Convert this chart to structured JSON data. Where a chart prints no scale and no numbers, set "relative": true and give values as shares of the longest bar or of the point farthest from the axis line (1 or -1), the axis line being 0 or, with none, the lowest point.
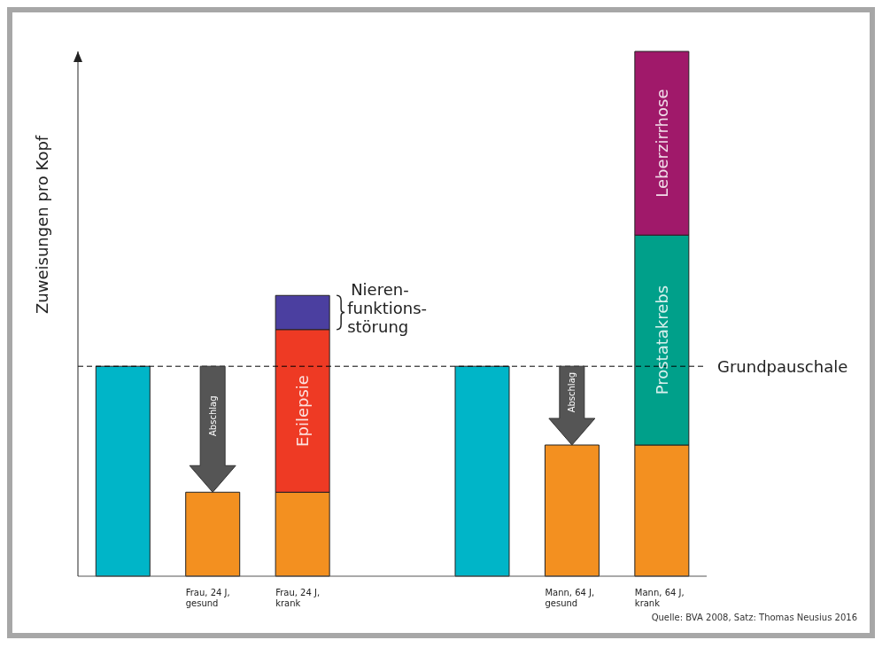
{
  "chart_data": {
    "type": "bar",
    "stacked": true,
    "relative": true,
    "ylabel": "Zuweisungen pro Kopf",
    "categories": [
      null,
      "Frau, 24 J, gesund",
      "Frau, 24 J, krank",
      null,
      null,
      "Mann, 64 J, gesund",
      "Mann, 64 J, krank"
    ],
    "series": [
      {
        "color": "#00b5c8",
        "values": [
          0.4,
          null,
          null,
          null,
          0.4,
          null,
          null
        ]
      },
      {
        "color": "#f39020",
        "values": [
          null,
          0.16,
          0.16,
          null,
          null,
          0.25,
          0.25
        ]
      },
      {
        "name": "Epilepsie",
        "color": "#ee3a24",
        "values": [
          null,
          null,
          0.31,
          null,
          null,
          null,
          null
        ]
      },
      {
        "name": "Nieren-\nfunktions-\nstörung",
        "color": "#4b3fa0",
        "values": [
          null,
          null,
          0.065,
          null,
          null,
          null,
          null
        ]
      },
      {
        "name": "Prostatakrebs",
        "color": "#00a08a",
        "values": [
          null,
          null,
          null,
          null,
          null,
          null,
          0.4
        ]
      },
      {
        "name": "Leberzirrhose",
        "color": "#a0196a",
        "values": [
          null,
          null,
          null,
          null,
          null,
          null,
          0.35
        ]
      }
    ],
    "ref_lines": [
      {
        "axis": "y",
        "value": 0.4,
        "label": "Grundpauschale",
        "line_style": "dashed",
        "color": "#000000"
      }
    ],
    "annotations": [
      "Abschlag",
      "Abschlag",
      "Quelle: BVA 2008, Satz: Thomas Neusius 2016"
    ]
  }
}
